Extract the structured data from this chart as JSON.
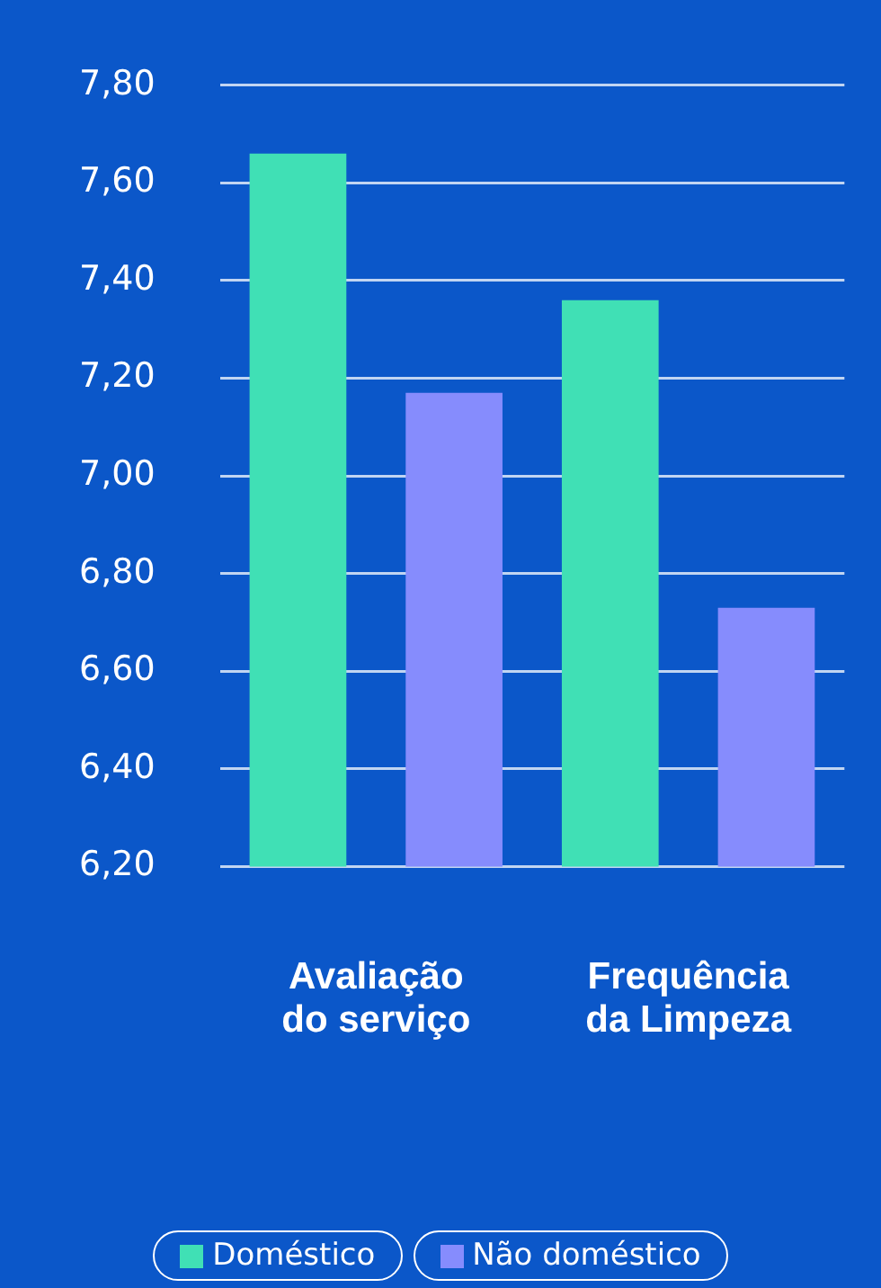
{
  "chart_data": {
    "type": "bar",
    "categories": [
      "Avaliação do serviço",
      "Frequência da Limpeza"
    ],
    "series": [
      {
        "name": "Doméstico",
        "color": "#40e0b5",
        "values": [
          7.66,
          7.36
        ]
      },
      {
        "name": "Não doméstico",
        "color": "#868cfd",
        "values": [
          7.17,
          6.73
        ]
      }
    ],
    "ylim": [
      6.2,
      7.8
    ],
    "yticks": [
      {
        "value": 6.2,
        "label": "6,20"
      },
      {
        "value": 6.4,
        "label": "6,40"
      },
      {
        "value": 6.6,
        "label": "6,60"
      },
      {
        "value": 6.8,
        "label": "6,80"
      },
      {
        "value": 7.0,
        "label": "7,00"
      },
      {
        "value": 7.2,
        "label": "7,20"
      },
      {
        "value": 7.4,
        "label": "7,40"
      },
      {
        "value": 7.6,
        "label": "7,60"
      },
      {
        "value": 7.8,
        "label": "7,80"
      }
    ],
    "grid": "y",
    "legend": "bottom"
  }
}
